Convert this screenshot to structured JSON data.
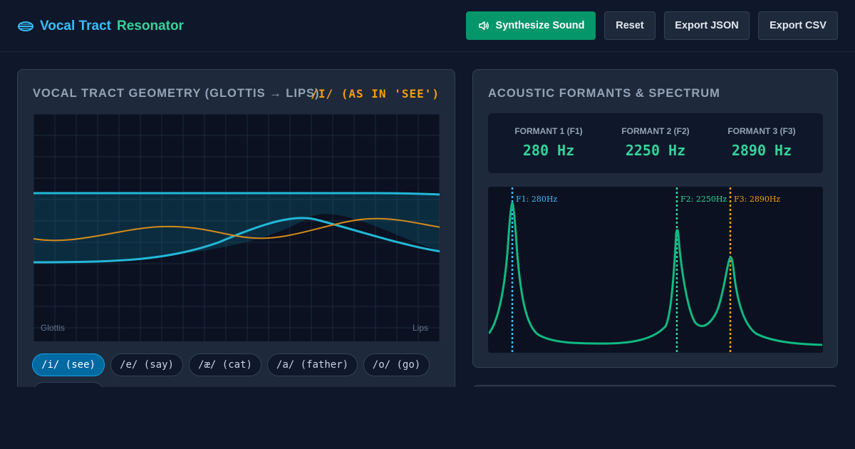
{
  "header": {
    "title_part1": "Vocal Tract",
    "title_part2": "Resonator",
    "buttons": {
      "synthesize": "Synthesize Sound",
      "reset": "Reset",
      "export_json": "Export JSON",
      "export_csv": "Export CSV"
    }
  },
  "geometry_panel": {
    "title": "Vocal Tract Geometry (Glottis → Lips)",
    "current_vowel": "/i/ (as in 'see')",
    "label_left": "Glottis",
    "label_right": "Lips",
    "vowels": [
      {
        "label": "/i/ (see)",
        "active": true
      },
      {
        "label": "/e/ (say)",
        "active": false
      },
      {
        "label": "/æ/ (cat)",
        "active": false
      },
      {
        "label": "/a/ (father)",
        "active": false
      },
      {
        "label": "/o/ (go)",
        "active": false
      }
    ]
  },
  "formant_panel": {
    "title": "Acoustic Formants & Spectrum",
    "formants": [
      {
        "label": "Formant 1 (F1)",
        "value": "280 Hz"
      },
      {
        "label": "Formant 2 (F2)",
        "value": "2250 Hz"
      },
      {
        "label": "Formant 3 (F3)",
        "value": "2890 Hz"
      }
    ],
    "spectrum_markers": [
      {
        "label": "F1: 280Hz",
        "color": "#38bdf8"
      },
      {
        "label": "F2: 2250Hz",
        "color": "#34d399"
      },
      {
        "label": "F3: 2890Hz",
        "color": "#f59e0b"
      }
    ]
  },
  "colors": {
    "accent_blue": "#38bdf8",
    "accent_green": "#34d399",
    "accent_amber": "#f59e0b",
    "primary_button": "#059669"
  }
}
